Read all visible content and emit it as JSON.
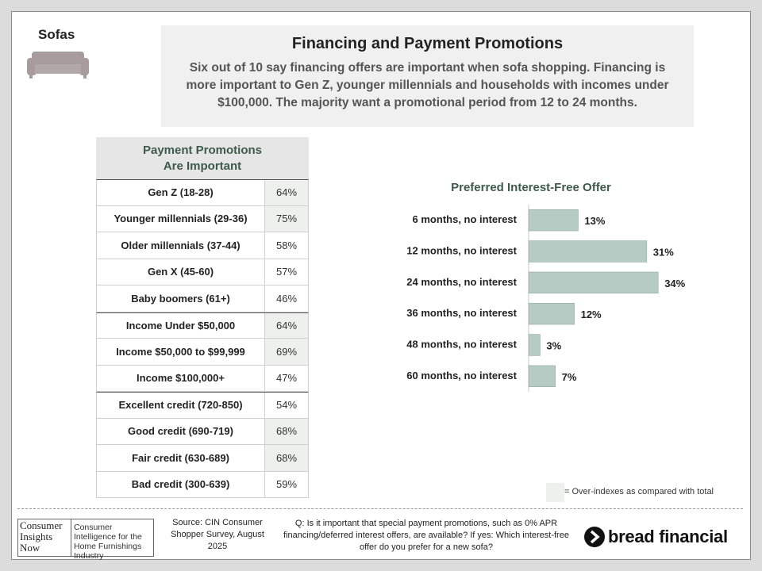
{
  "header": {
    "section": "Sofas",
    "title": "Financing and Payment Promotions",
    "summary": "Six out of 10 say financing offers are important when sofa shopping. Financing is more important to Gen Z, younger millennials and households with incomes under $100,000. The majority want a promotional period from 12 to 24 months."
  },
  "table": {
    "title": "Payment Promotions Are Important",
    "groups": [
      [
        {
          "label": "Gen Z (18-28)",
          "value": "64%",
          "over_index": true
        },
        {
          "label": "Younger millennials (29-36)",
          "value": "75%",
          "over_index": true
        },
        {
          "label": "Older millennials (37-44)",
          "value": "58%",
          "over_index": false
        },
        {
          "label": "Gen X (45-60)",
          "value": "57%",
          "over_index": false
        },
        {
          "label": "Baby boomers (61+)",
          "value": "46%",
          "over_index": false
        }
      ],
      [
        {
          "label": "Income Under $50,000",
          "value": "64%",
          "over_index": true
        },
        {
          "label": "Income $50,000 to $99,999",
          "value": "69%",
          "over_index": true
        },
        {
          "label": "Income $100,000+",
          "value": "47%",
          "over_index": false
        }
      ],
      [
        {
          "label": "Excellent credit (720-850)",
          "value": "54%",
          "over_index": false
        },
        {
          "label": "Good credit (690-719)",
          "value": "68%",
          "over_index": true
        },
        {
          "label": "Fair credit (630-689)",
          "value": "68%",
          "over_index": true
        },
        {
          "label": "Bad credit (300-639)",
          "value": "59%",
          "over_index": false
        }
      ]
    ],
    "legend": "= Over-indexes as compared with total"
  },
  "chart_data": {
    "type": "bar",
    "orientation": "horizontal",
    "title": "Preferred Interest-Free Offer",
    "categories": [
      "6 months, no interest",
      "12 months, no interest",
      "24 months, no interest",
      "36 months, no interest",
      "48 months, no interest",
      "60 months, no interest"
    ],
    "values": [
      13,
      31,
      34,
      12,
      3,
      7
    ],
    "value_labels": [
      "13%",
      "31%",
      "34%",
      "12%",
      "3%",
      "7%"
    ],
    "color": "#b6cbc3",
    "xlim": [
      0,
      40
    ]
  },
  "footer": {
    "logo_lines": [
      "Consumer",
      "Insights",
      "Now"
    ],
    "logo_tagline": "Consumer Intelligence for the Home Furnishings Industry",
    "source": "Source: CIN Consumer Shopper Survey, August 2025",
    "question": "Q: Is it important that special payment promotions, such as 0% APR financing/deferred interest offers, are available? If yes: Which interest-free offer do you prefer for a new sofa?",
    "brand": "bread financial"
  }
}
